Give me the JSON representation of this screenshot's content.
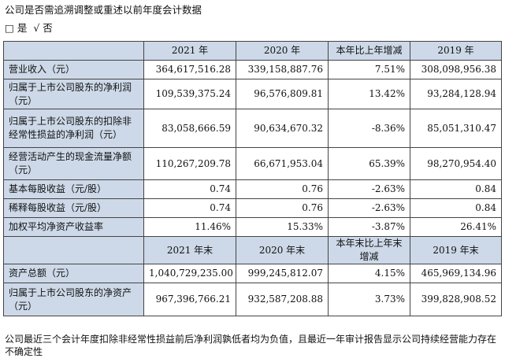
{
  "heading": "公司是否需追溯调整或重述以前年度会计数据",
  "choice": {
    "box": "□",
    "yes": "是",
    "check": "√",
    "no": "否"
  },
  "table": {
    "header1": [
      "",
      "2021 年",
      "2020 年",
      "本年比上年增减",
      "2019 年"
    ],
    "rows1": [
      {
        "label": "营业收入（元）",
        "values": [
          "364,617,516.28",
          "339,158,887.76",
          "7.51%",
          "308,098,956.38"
        ]
      },
      {
        "label": "归属于上市公司股东的净利润（元）",
        "values": [
          "109,539,375.24",
          "96,576,809.81",
          "13.42%",
          "93,284,128.94"
        ]
      },
      {
        "label": "归属于上市公司股东的扣除非经常性损益的净利润（元）",
        "values": [
          "83,058,666.59",
          "90,634,670.32",
          "-8.36%",
          "85,051,310.47"
        ]
      },
      {
        "label": "经营活动产生的现金流量净额（元）",
        "values": [
          "110,267,209.78",
          "66,671,953.04",
          "65.39%",
          "98,270,954.40"
        ]
      },
      {
        "label": "基本每股收益（元/股）",
        "values": [
          "0.74",
          "0.76",
          "-2.63%",
          "0.84"
        ]
      },
      {
        "label": "稀释每股收益（元/股）",
        "values": [
          "0.74",
          "0.76",
          "-2.63%",
          "0.84"
        ]
      },
      {
        "label": "加权平均净资产收益率",
        "values": [
          "11.46%",
          "15.33%",
          "-3.87%",
          "26.41%"
        ]
      }
    ],
    "header2": [
      "",
      "2021 年末",
      "2020 年末",
      "本年末比上年末增减",
      "2019 年末"
    ],
    "rows2": [
      {
        "label": "资产总额（元）",
        "values": [
          "1,040,729,235.00",
          "999,245,812.07",
          "4.15%",
          "465,969,134.96"
        ]
      },
      {
        "label": "归属于上市公司股东的净资产（元）",
        "values": [
          "967,396,766.21",
          "932,587,208.88",
          "3.73%",
          "399,828,908.52"
        ]
      }
    ]
  },
  "footnote": "公司最近三个会计年度扣除非经常性损益前后净利润孰低者均为负值，且最近一年审计报告显示公司持续经营能力存在不确定性",
  "colors": {
    "header_bg": "#cdd9e8",
    "border": "#444444"
  }
}
